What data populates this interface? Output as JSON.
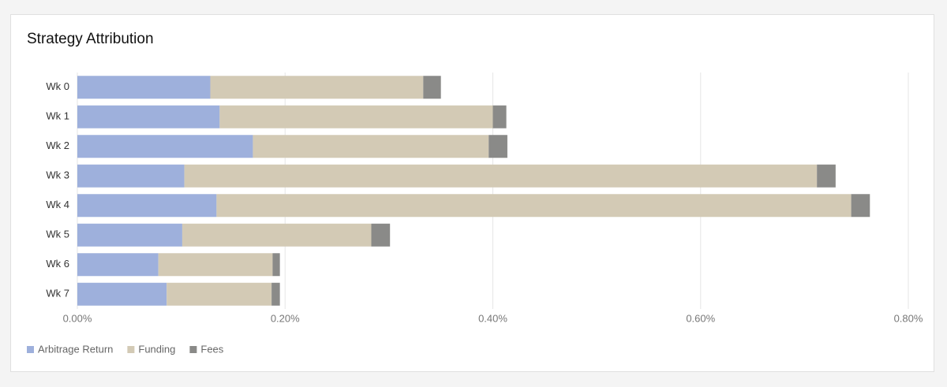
{
  "chart_data": {
    "type": "stacked-horizontal-bar",
    "title": "Strategy Attribution",
    "categories": [
      "Wk 0",
      "Wk 1",
      "Wk 2",
      "Wk 3",
      "Wk 4",
      "Wk 5",
      "Wk 6",
      "Wk 7"
    ],
    "series": [
      {
        "name": "Arbitrage Return",
        "color": "#9eb0dc",
        "values": [
          0.128,
          0.137,
          0.169,
          0.103,
          0.134,
          0.101,
          0.078,
          0.086
        ]
      },
      {
        "name": "Funding",
        "color": "#d3cab5",
        "values": [
          0.205,
          0.263,
          0.227,
          0.609,
          0.611,
          0.182,
          0.11,
          0.101
        ]
      },
      {
        "name": "Fees",
        "color": "#8a8a88",
        "values": [
          0.017,
          0.013,
          0.018,
          0.018,
          0.018,
          0.018,
          0.007,
          0.008
        ]
      }
    ],
    "xlim": [
      0,
      0.8
    ],
    "xticks": [
      {
        "value": 0,
        "label": "0.00%"
      },
      {
        "value": 0.2,
        "label": "0.20%"
      },
      {
        "value": 0.4,
        "label": "0.40%"
      },
      {
        "value": 0.6,
        "label": "0.60%"
      },
      {
        "value": 0.8,
        "label": "0.80%"
      }
    ],
    "grid": true
  }
}
